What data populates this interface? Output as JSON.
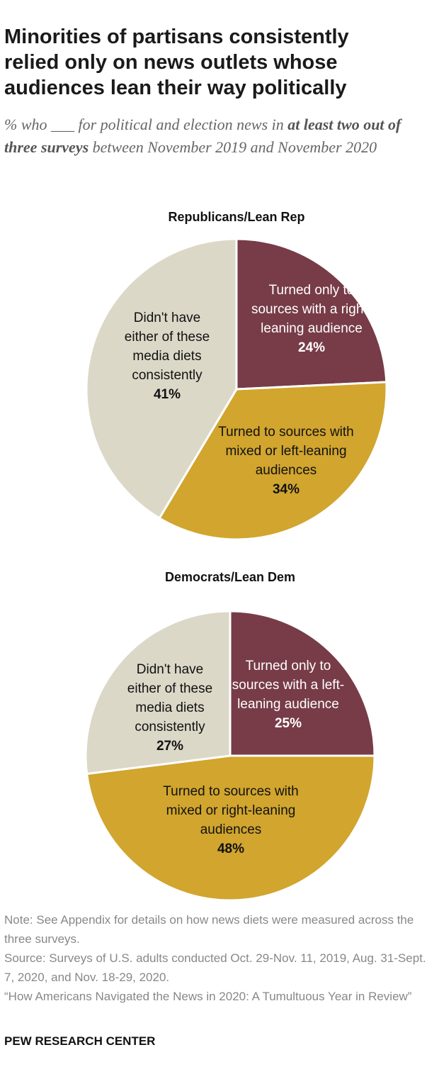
{
  "title": "Minorities of partisans consistently relied only on news outlets whose audiences lean their way politically",
  "subtitle": [
    "% who ___ for political and election news in ",
    "at least two out of three surveys",
    " between November 2019 and November 2020"
  ],
  "note": "Note: See Appendix for details on how news diets were measured across the three surveys.",
  "source": "Source: Surveys of U.S. adults conducted Oct. 29-Nov. 11, 2019, Aug. 31-Sept. 7, 2020, and Nov. 18-29, 2020.",
  "report": "“How Americans Navigated the News in 2020: A Tumultuous Year in Review”",
  "logo": "PEW RESEARCH CENTER",
  "chart_data": [
    {
      "type": "pie",
      "title": "Republicans/Lean Rep",
      "categories": [
        "Turned only to sources with a right-leaning audience",
        "Turned to sources with mixed or left-leaning audiences",
        "Didn't have either of these media diets consistently"
      ],
      "values": [
        24,
        34,
        41
      ],
      "value_labels": [
        "24%",
        "34%",
        "41%"
      ],
      "colors": [
        "#773c48",
        "#d1a52e",
        "#dcd8c8"
      ]
    },
    {
      "type": "pie",
      "title": "Democrats/Lean Dem",
      "categories": [
        "Turned only to sources with a left-leaning audience",
        "Turned to sources with mixed or right-leaning audiences",
        "Didn't have either of these media diets consistently"
      ],
      "values": [
        25,
        48,
        27
      ],
      "value_labels": [
        "25%",
        "48%",
        "27%"
      ],
      "colors": [
        "#773c48",
        "#d1a52e",
        "#dcd8c8"
      ]
    }
  ]
}
